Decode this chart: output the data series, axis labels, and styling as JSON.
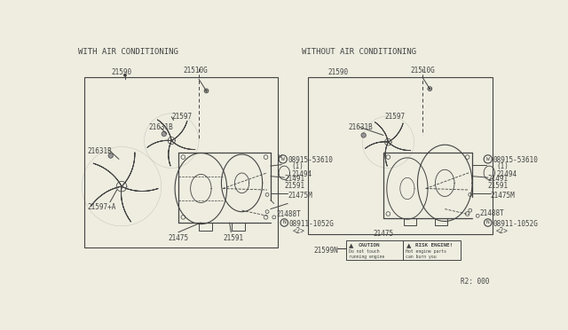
{
  "bg_color": "#eeede0",
  "line_color": "#444444",
  "left_title": "WITH AIR CONDITIONING",
  "right_title": "WITHOUT AIR CONDITIONING",
  "page_ref": "R2: 000",
  "part_ref": "21599N"
}
